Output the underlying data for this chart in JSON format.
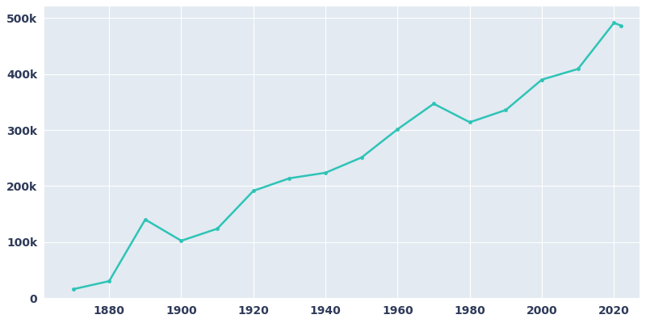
{
  "years": [
    1870,
    1880,
    1890,
    1900,
    1910,
    1920,
    1930,
    1940,
    1950,
    1960,
    1970,
    1980,
    1990,
    2000,
    2010,
    2020,
    2022
  ],
  "population": [
    16083,
    30518,
    140452,
    102555,
    124096,
    191601,
    214006,
    223844,
    251117,
    301598,
    346929,
    313939,
    335795,
    390007,
    408958,
    491340,
    486051
  ],
  "line_color": "#2EC4B6",
  "marker_color": "#2EC4B6",
  "figure_bg": "#FFFFFF",
  "plot_bg": "#E3EAF2",
  "grid_color": "#FFFFFF",
  "tick_label_color": "#2E3A59",
  "line_width": 1.8,
  "marker_size": 3.5,
  "xlim": [
    1862,
    2027
  ],
  "ylim": [
    0,
    520000
  ],
  "ytick_values": [
    0,
    100000,
    200000,
    300000,
    400000,
    500000
  ],
  "ytick_labels": [
    "0",
    "100k",
    "200k",
    "300k",
    "400k",
    "500k"
  ],
  "xtick_values": [
    1880,
    1900,
    1920,
    1940,
    1960,
    1980,
    2000,
    2020
  ],
  "figsize": [
    8.0,
    4.0
  ],
  "dpi": 100
}
